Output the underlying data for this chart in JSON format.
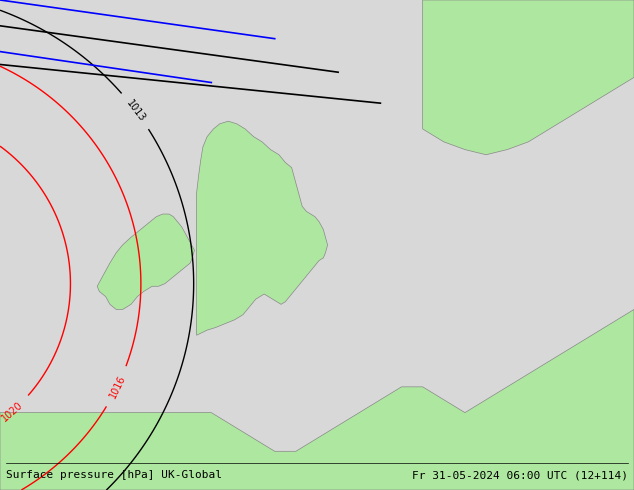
{
  "title_left": "Surface pressure [hPa] UK-Global",
  "title_right": "Fr 31-05-2024 06:00 UTC (12+114)",
  "bg_color": "#d8d8d8",
  "land_color": "#aee8a0",
  "land_border_color": "#888888",
  "sea_color": "#d8d8d8",
  "isobar_color": "#ff0000",
  "isobar_label_color": "#ff0000",
  "blue_line_color": "#0000ff",
  "black_line_color": "#000000",
  "font_size_labels": 8,
  "font_size_title": 8
}
